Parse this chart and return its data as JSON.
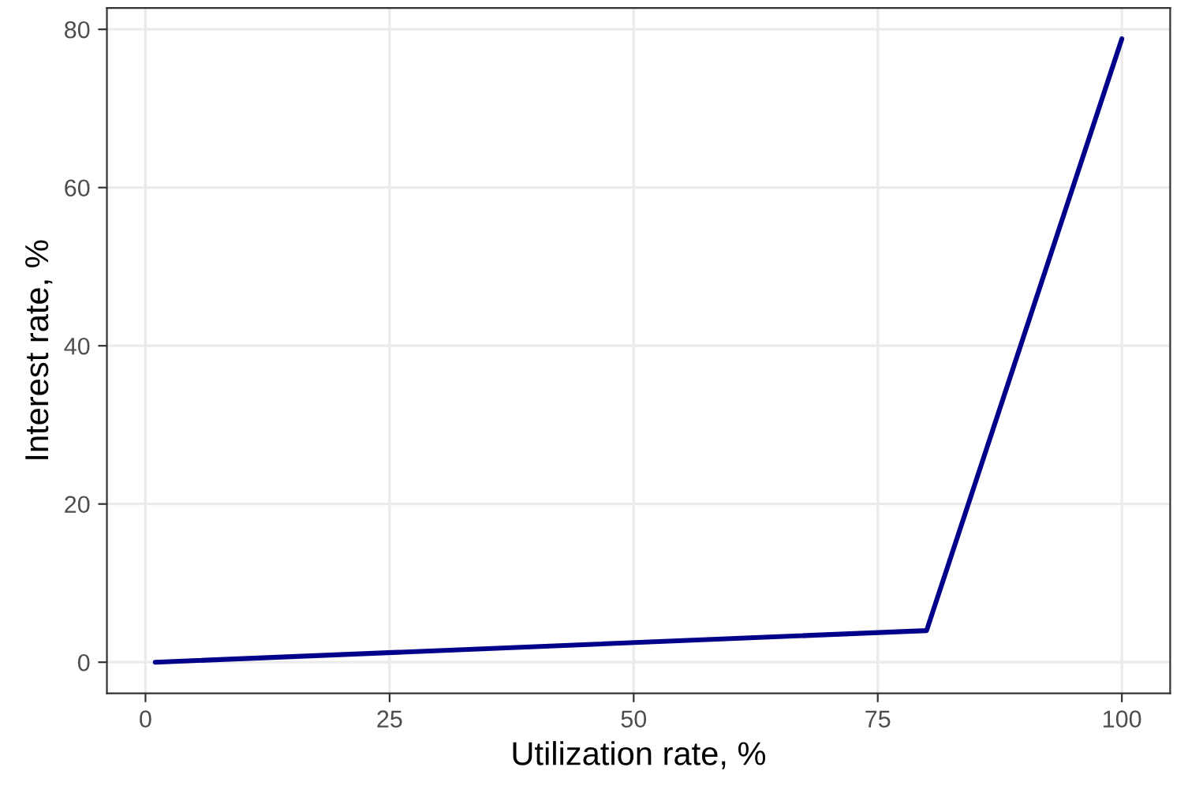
{
  "chart_data": {
    "type": "line",
    "xlabel": "Utilization rate, %",
    "ylabel": "Interest rate, %",
    "x": [
      1,
      80,
      100
    ],
    "series": [
      {
        "color": "#00008b",
        "values": [
          0,
          4,
          78.8
        ]
      }
    ],
    "xlim": [
      -3.95,
      104.95
    ],
    "ylim": [
      -3.94,
      82.7
    ],
    "xticks": [
      0,
      25,
      50,
      75,
      100
    ],
    "yticks": [
      0,
      20,
      40,
      60,
      80
    ],
    "grid": true,
    "marker": "none",
    "line_style": "solid"
  }
}
